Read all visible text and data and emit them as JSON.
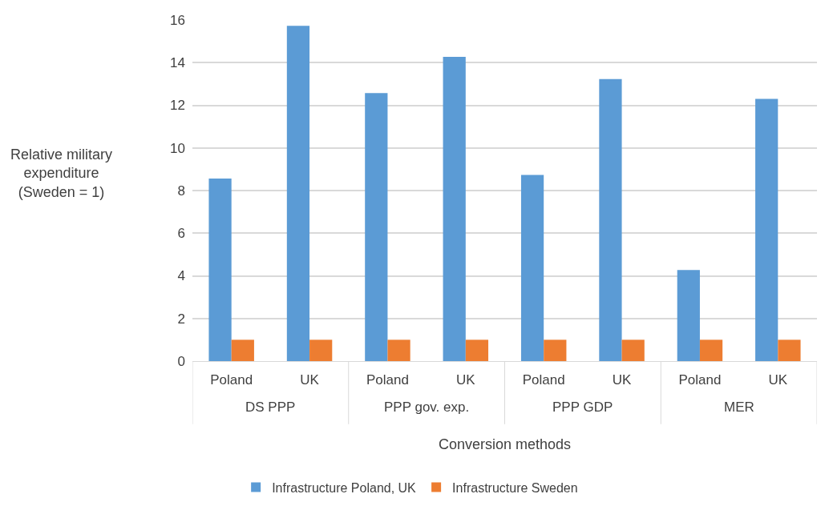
{
  "chart_data": {
    "type": "bar",
    "xlabel": "Conversion methods",
    "ylabel": "Relative military expenditure (Sweden = 1)",
    "categories": [
      "Poland",
      "UK",
      "Poland",
      "UK",
      "Poland",
      "UK",
      "Poland",
      "UK"
    ],
    "annotations": [
      "DS PPP",
      "PPP gov. exp.",
      "PPP GDP",
      "MER"
    ],
    "series": [
      {
        "name": "Infrastructure Poland, UK",
        "color": "#5b9bd5",
        "values": [
          8.56,
          15.73,
          12.57,
          14.27,
          8.73,
          13.23,
          4.27,
          12.3
        ]
      },
      {
        "name": "Infrastructure Sweden",
        "color": "#ed7d31",
        "values": [
          1,
          1,
          1,
          1,
          1,
          1,
          1,
          1
        ]
      }
    ],
    "ylim": [
      0,
      16
    ],
    "yticks": [
      0,
      2,
      4,
      6,
      8,
      10,
      12,
      14,
      16
    ],
    "grid": "y",
    "legend": "bottom"
  }
}
